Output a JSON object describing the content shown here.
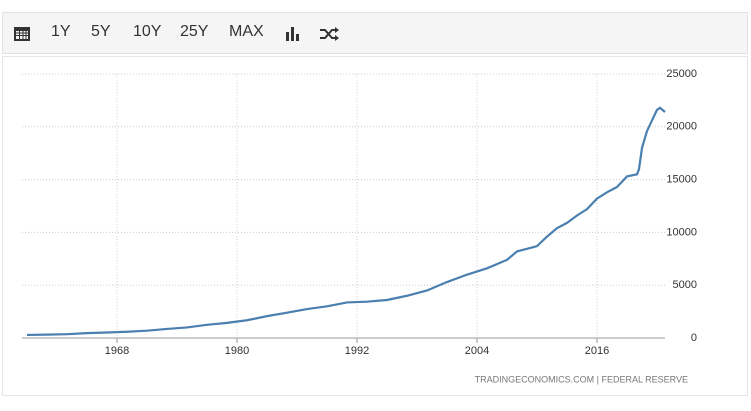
{
  "toolbar": {
    "buttons": [
      "1Y",
      "5Y",
      "10Y",
      "25Y",
      "MAX"
    ]
  },
  "chart_data": {
    "type": "line",
    "x": [
      1959,
      1961,
      1963,
      1965,
      1967,
      1969,
      1971,
      1973,
      1975,
      1977,
      1979,
      1981,
      1983,
      1985,
      1987,
      1989,
      1991,
      1993,
      1995,
      1997,
      1999,
      2001,
      2003,
      2005,
      2007,
      2008,
      2009,
      2010,
      2011,
      2012,
      2013,
      2014,
      2015,
      2016,
      2017,
      2018,
      2019,
      2020,
      2020.2,
      2020.5,
      2021,
      2021.5,
      2022,
      2022.3,
      2022.8
    ],
    "series": [
      {
        "color": "#4a7fb0",
        "values": [
          290,
          320,
          360,
          460,
          520,
          590,
          690,
          860,
          1000,
          1250,
          1430,
          1680,
          2070,
          2400,
          2740,
          3000,
          3370,
          3440,
          3600,
          4000,
          4500,
          5300,
          6000,
          6600,
          7400,
          8200,
          8450,
          8700,
          9600,
          10400,
          10900,
          11600,
          12200,
          13200,
          13800,
          14300,
          15300,
          15500,
          16000,
          18000,
          19600,
          20600,
          21600,
          21800,
          21400
        ]
      }
    ],
    "xlim": [
      1958.5,
      2022.8
    ],
    "ylim": [
      0,
      25000
    ],
    "xticks": [
      1968,
      1980,
      1992,
      2004,
      2016
    ],
    "yticks": [
      0,
      5000,
      10000,
      15000,
      20000,
      25000
    ],
    "grid": true,
    "source": "TRADINGECONOMICS.COM  |  FEDERAL RESERVE"
  }
}
